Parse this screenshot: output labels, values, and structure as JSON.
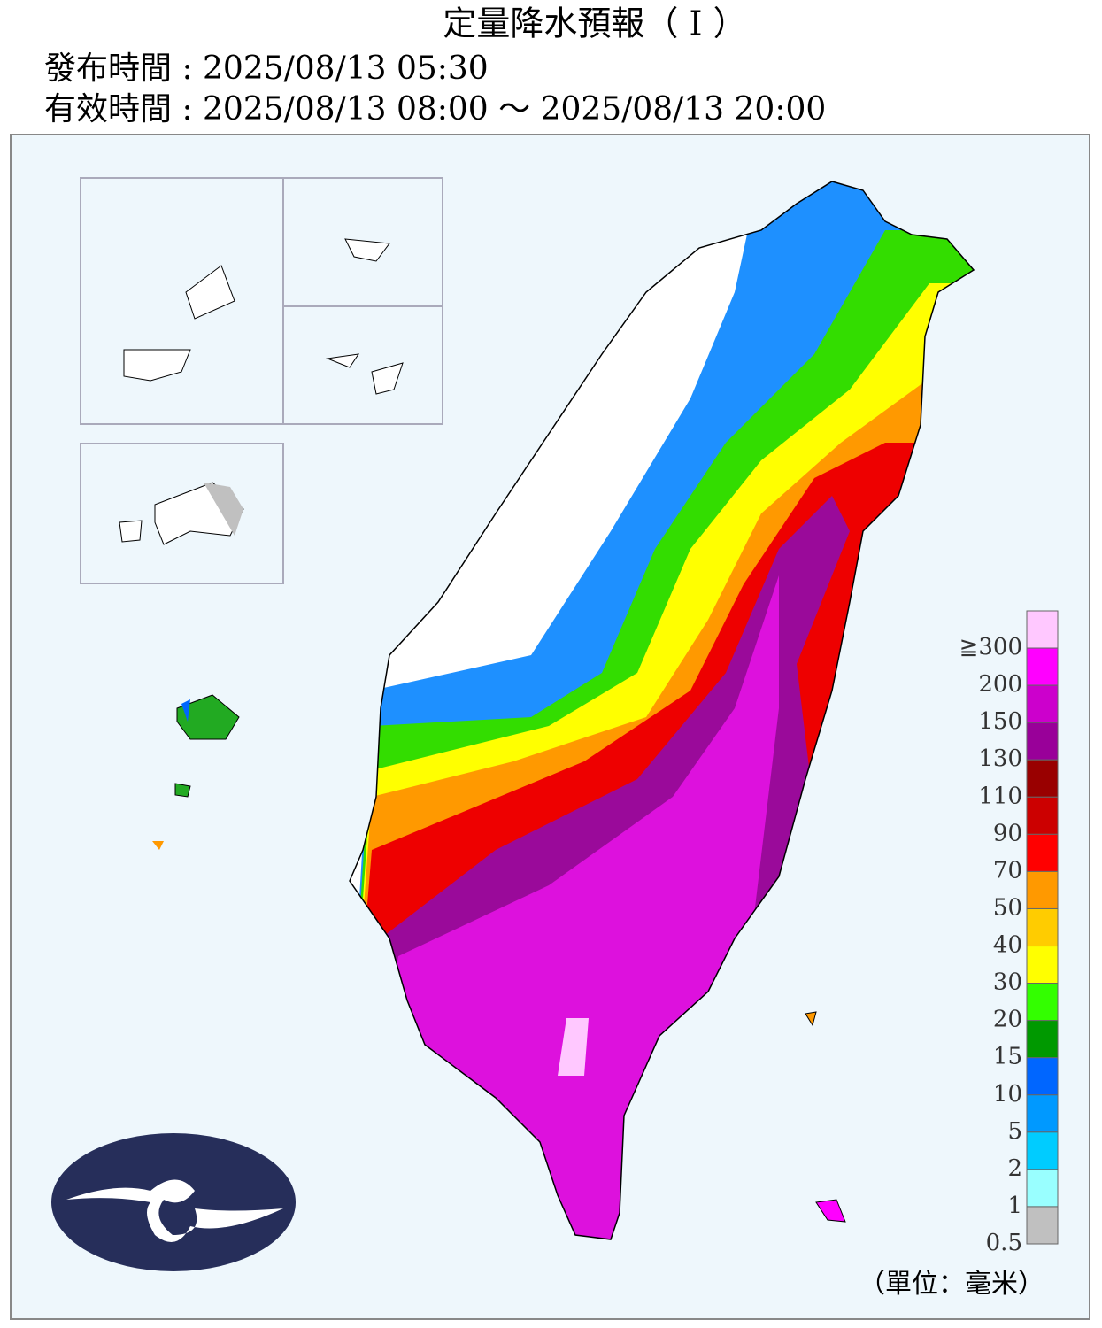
{
  "header": {
    "title": "定量降水預報（ I ）",
    "issued": "發布時間 : 2025/08/13 05:30",
    "valid": "有效時間 : 2025/08/13 08:00 ～ 2025/08/13 20:00"
  },
  "legend": {
    "labels": [
      "≧300",
      "200",
      "150",
      "130",
      "110",
      "90",
      "70",
      "50",
      "40",
      "30",
      "20",
      "15",
      "10",
      "5",
      "2",
      "1",
      "0.5"
    ],
    "colors": [
      "#ffc8ff",
      "#ff00ff",
      "#cc00cc",
      "#990099",
      "#990000",
      "#cc0000",
      "#ff0000",
      "#ff9900",
      "#ffcc00",
      "#ffff00",
      "#33ff00",
      "#009900",
      "#0066ff",
      "#0099ff",
      "#00ccff",
      "#99ffff",
      "#c0c0c0"
    ],
    "unit": "（單位：毫米）"
  }
}
